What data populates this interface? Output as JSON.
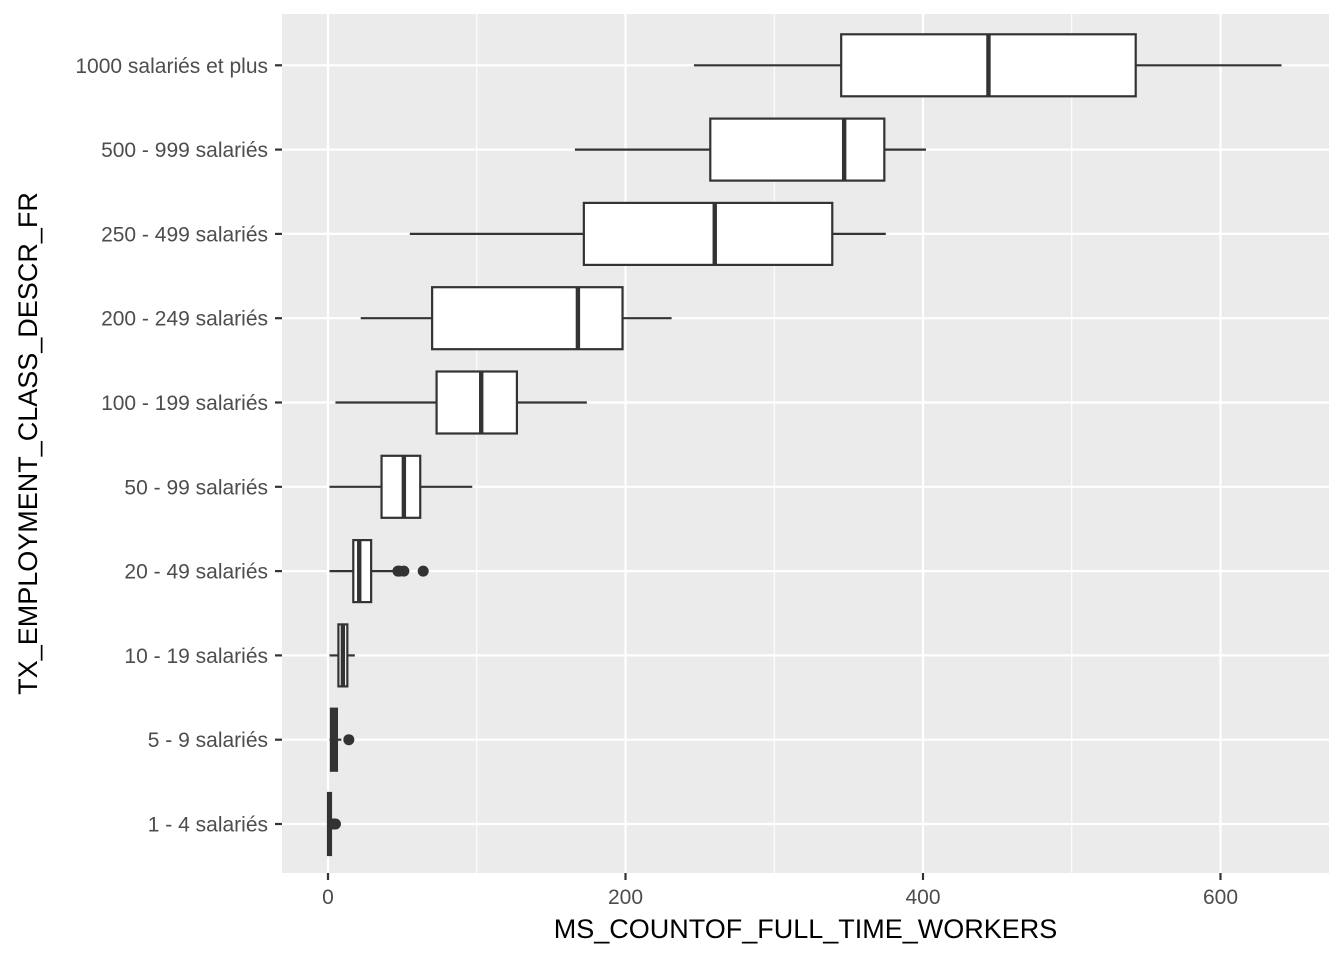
{
  "chart_data": {
    "type": "boxplot",
    "orientation": "horizontal",
    "title": "",
    "xlabel": "MS_COUNTOF_FULL_TIME_WORKERS",
    "ylabel": "TX_EMPLOYMENT_CLASS_DESCR_FR",
    "xlim": [
      -31,
      667
    ],
    "x_ticks": [
      0,
      200,
      400,
      600
    ],
    "x_tick_labels": [
      "0",
      "200",
      "400",
      "600"
    ],
    "grid": true,
    "categories": [
      "1 - 4 salariés",
      "5 - 9 salariés",
      "10 - 19 salariés",
      "20 - 49 salariés",
      "50 - 99 salariés",
      "100 - 199 salariés",
      "200 - 249 salariés",
      "250 - 499 salariés",
      "500 - 999 salariés",
      "1000 salariés et plus"
    ],
    "boxes": [
      {
        "category": "1 - 4 salariés",
        "whisker_low": 0,
        "q1": 0,
        "median": 1,
        "q3": 2,
        "whisker_high": 2,
        "outliers": [
          3,
          4,
          5
        ]
      },
      {
        "category": "5 - 9 salariés",
        "whisker_low": 1,
        "q1": 2,
        "median": 4,
        "q3": 6,
        "whisker_high": 9,
        "outliers": [
          14
        ]
      },
      {
        "category": "10 - 19 salariés",
        "whisker_low": 1,
        "q1": 7,
        "median": 10,
        "q3": 13,
        "whisker_high": 18,
        "outliers": []
      },
      {
        "category": "20 - 49 salariés",
        "whisker_low": 1,
        "q1": 17,
        "median": 21,
        "q3": 29,
        "whisker_high": 44,
        "outliers": [
          47,
          48,
          51,
          64
        ]
      },
      {
        "category": "50 - 99 salariés",
        "whisker_low": 1,
        "q1": 36,
        "median": 51,
        "q3": 62,
        "whisker_high": 97,
        "outliers": []
      },
      {
        "category": "100 - 199 salariés",
        "whisker_low": 5,
        "q1": 73,
        "median": 103,
        "q3": 127,
        "whisker_high": 174,
        "outliers": []
      },
      {
        "category": "200 - 249 salariés",
        "whisker_low": 22,
        "q1": 70,
        "median": 168,
        "q3": 198,
        "whisker_high": 231,
        "outliers": []
      },
      {
        "category": "250 - 499 salariés",
        "whisker_low": 55,
        "q1": 172,
        "median": 260,
        "q3": 339,
        "whisker_high": 375,
        "outliers": []
      },
      {
        "category": "500 - 999 salariés",
        "whisker_low": 166,
        "q1": 257,
        "median": 347,
        "q3": 374,
        "whisker_high": 402,
        "outliers": []
      },
      {
        "category": "1000 salariés et plus",
        "whisker_low": 246,
        "q1": 345,
        "median": 444,
        "q3": 543,
        "whisker_high": 641,
        "outliers": []
      }
    ],
    "colors": {
      "panel_background": "#ebebeb",
      "grid_major": "#ffffff",
      "box_fill": "#ffffff",
      "box_stroke": "#333333",
      "tick_text": "#4d4d4d",
      "tick_mark": "#333333",
      "title_text": "#000000"
    }
  }
}
